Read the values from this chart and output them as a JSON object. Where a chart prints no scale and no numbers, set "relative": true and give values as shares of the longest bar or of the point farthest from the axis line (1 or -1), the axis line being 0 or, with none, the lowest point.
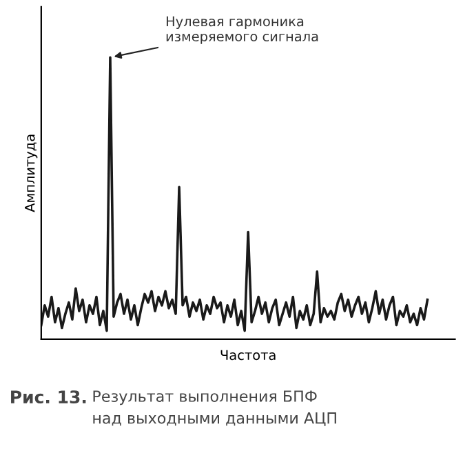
{
  "chart_data": {
    "type": "line",
    "relative": true,
    "xlabel": "Частота",
    "ylabel": "Амплитуда",
    "grid": false,
    "legend": false,
    "marker": "none",
    "line_style": "solid",
    "categories": [
      null,
      null,
      null,
      null,
      null,
      null,
      null,
      null,
      null,
      null,
      null,
      null,
      null,
      null,
      null,
      null,
      null,
      null,
      null,
      null,
      null,
      null,
      null,
      null,
      null,
      null,
      null,
      null,
      null,
      null,
      null,
      null,
      null,
      null,
      null,
      null,
      null,
      null,
      null,
      null,
      null,
      null,
      null,
      null,
      null,
      null,
      null,
      null,
      null,
      null,
      null,
      null,
      null,
      null,
      null,
      null,
      null,
      null,
      null,
      null,
      null,
      null,
      null,
      null,
      null,
      null,
      null,
      null,
      null,
      null,
      null,
      null,
      null,
      null,
      null,
      null,
      null,
      null,
      null,
      null,
      null,
      null,
      null,
      null,
      null,
      null,
      null,
      null,
      null,
      null,
      null,
      null,
      null,
      null,
      null,
      null,
      null,
      null,
      null,
      null,
      null,
      null,
      null,
      null,
      null,
      null,
      null,
      null,
      null,
      null,
      null,
      null,
      null,
      null,
      null,
      null,
      null,
      null,
      null,
      null,
      null
    ],
    "series": [
      {
        "color": "#1a1a1a",
        "values": [
          0.05,
          0.12,
          0.08,
          0.15,
          0.06,
          0.11,
          0.04,
          0.09,
          0.13,
          0.07,
          0.18,
          0.1,
          0.14,
          0.06,
          0.12,
          0.09,
          0.15,
          0.05,
          0.1,
          0.03,
          1,
          0.08,
          0.13,
          0.16,
          0.09,
          0.14,
          0.07,
          0.12,
          0.05,
          0.11,
          0.16,
          0.13,
          0.17,
          0.1,
          0.15,
          0.12,
          0.17,
          0.11,
          0.14,
          0.09,
          0.54,
          0.12,
          0.15,
          0.08,
          0.13,
          0.1,
          0.14,
          0.07,
          0.12,
          0.09,
          0.15,
          0.11,
          0.13,
          0.06,
          0.12,
          0.08,
          0.14,
          0.05,
          0.1,
          0.03,
          0.38,
          0.06,
          0.1,
          0.15,
          0.09,
          0.13,
          0.06,
          0.11,
          0.14,
          0.05,
          0.09,
          0.13,
          0.08,
          0.15,
          0.04,
          0.1,
          0.07,
          0.12,
          0.05,
          0.09,
          0.24,
          0.06,
          0.11,
          0.08,
          0.1,
          0.07,
          0.13,
          0.16,
          0.1,
          0.14,
          0.08,
          0.12,
          0.15,
          0.09,
          0.13,
          0.06,
          0.11,
          0.17,
          0.09,
          0.14,
          0.07,
          0.12,
          0.15,
          0.05,
          0.1,
          0.08,
          0.12,
          0.06,
          0.09,
          0.05,
          0.11,
          0.07,
          0.14,
          null,
          null,
          null,
          null,
          null,
          null,
          null,
          null
        ]
      }
    ],
    "annotations": [
      "Нулевая гармоника\nизмеряемого сигнала",
      "Рис. 13.",
      "Результат выполнения БПФ\nнад выходными данными АЦП"
    ]
  }
}
